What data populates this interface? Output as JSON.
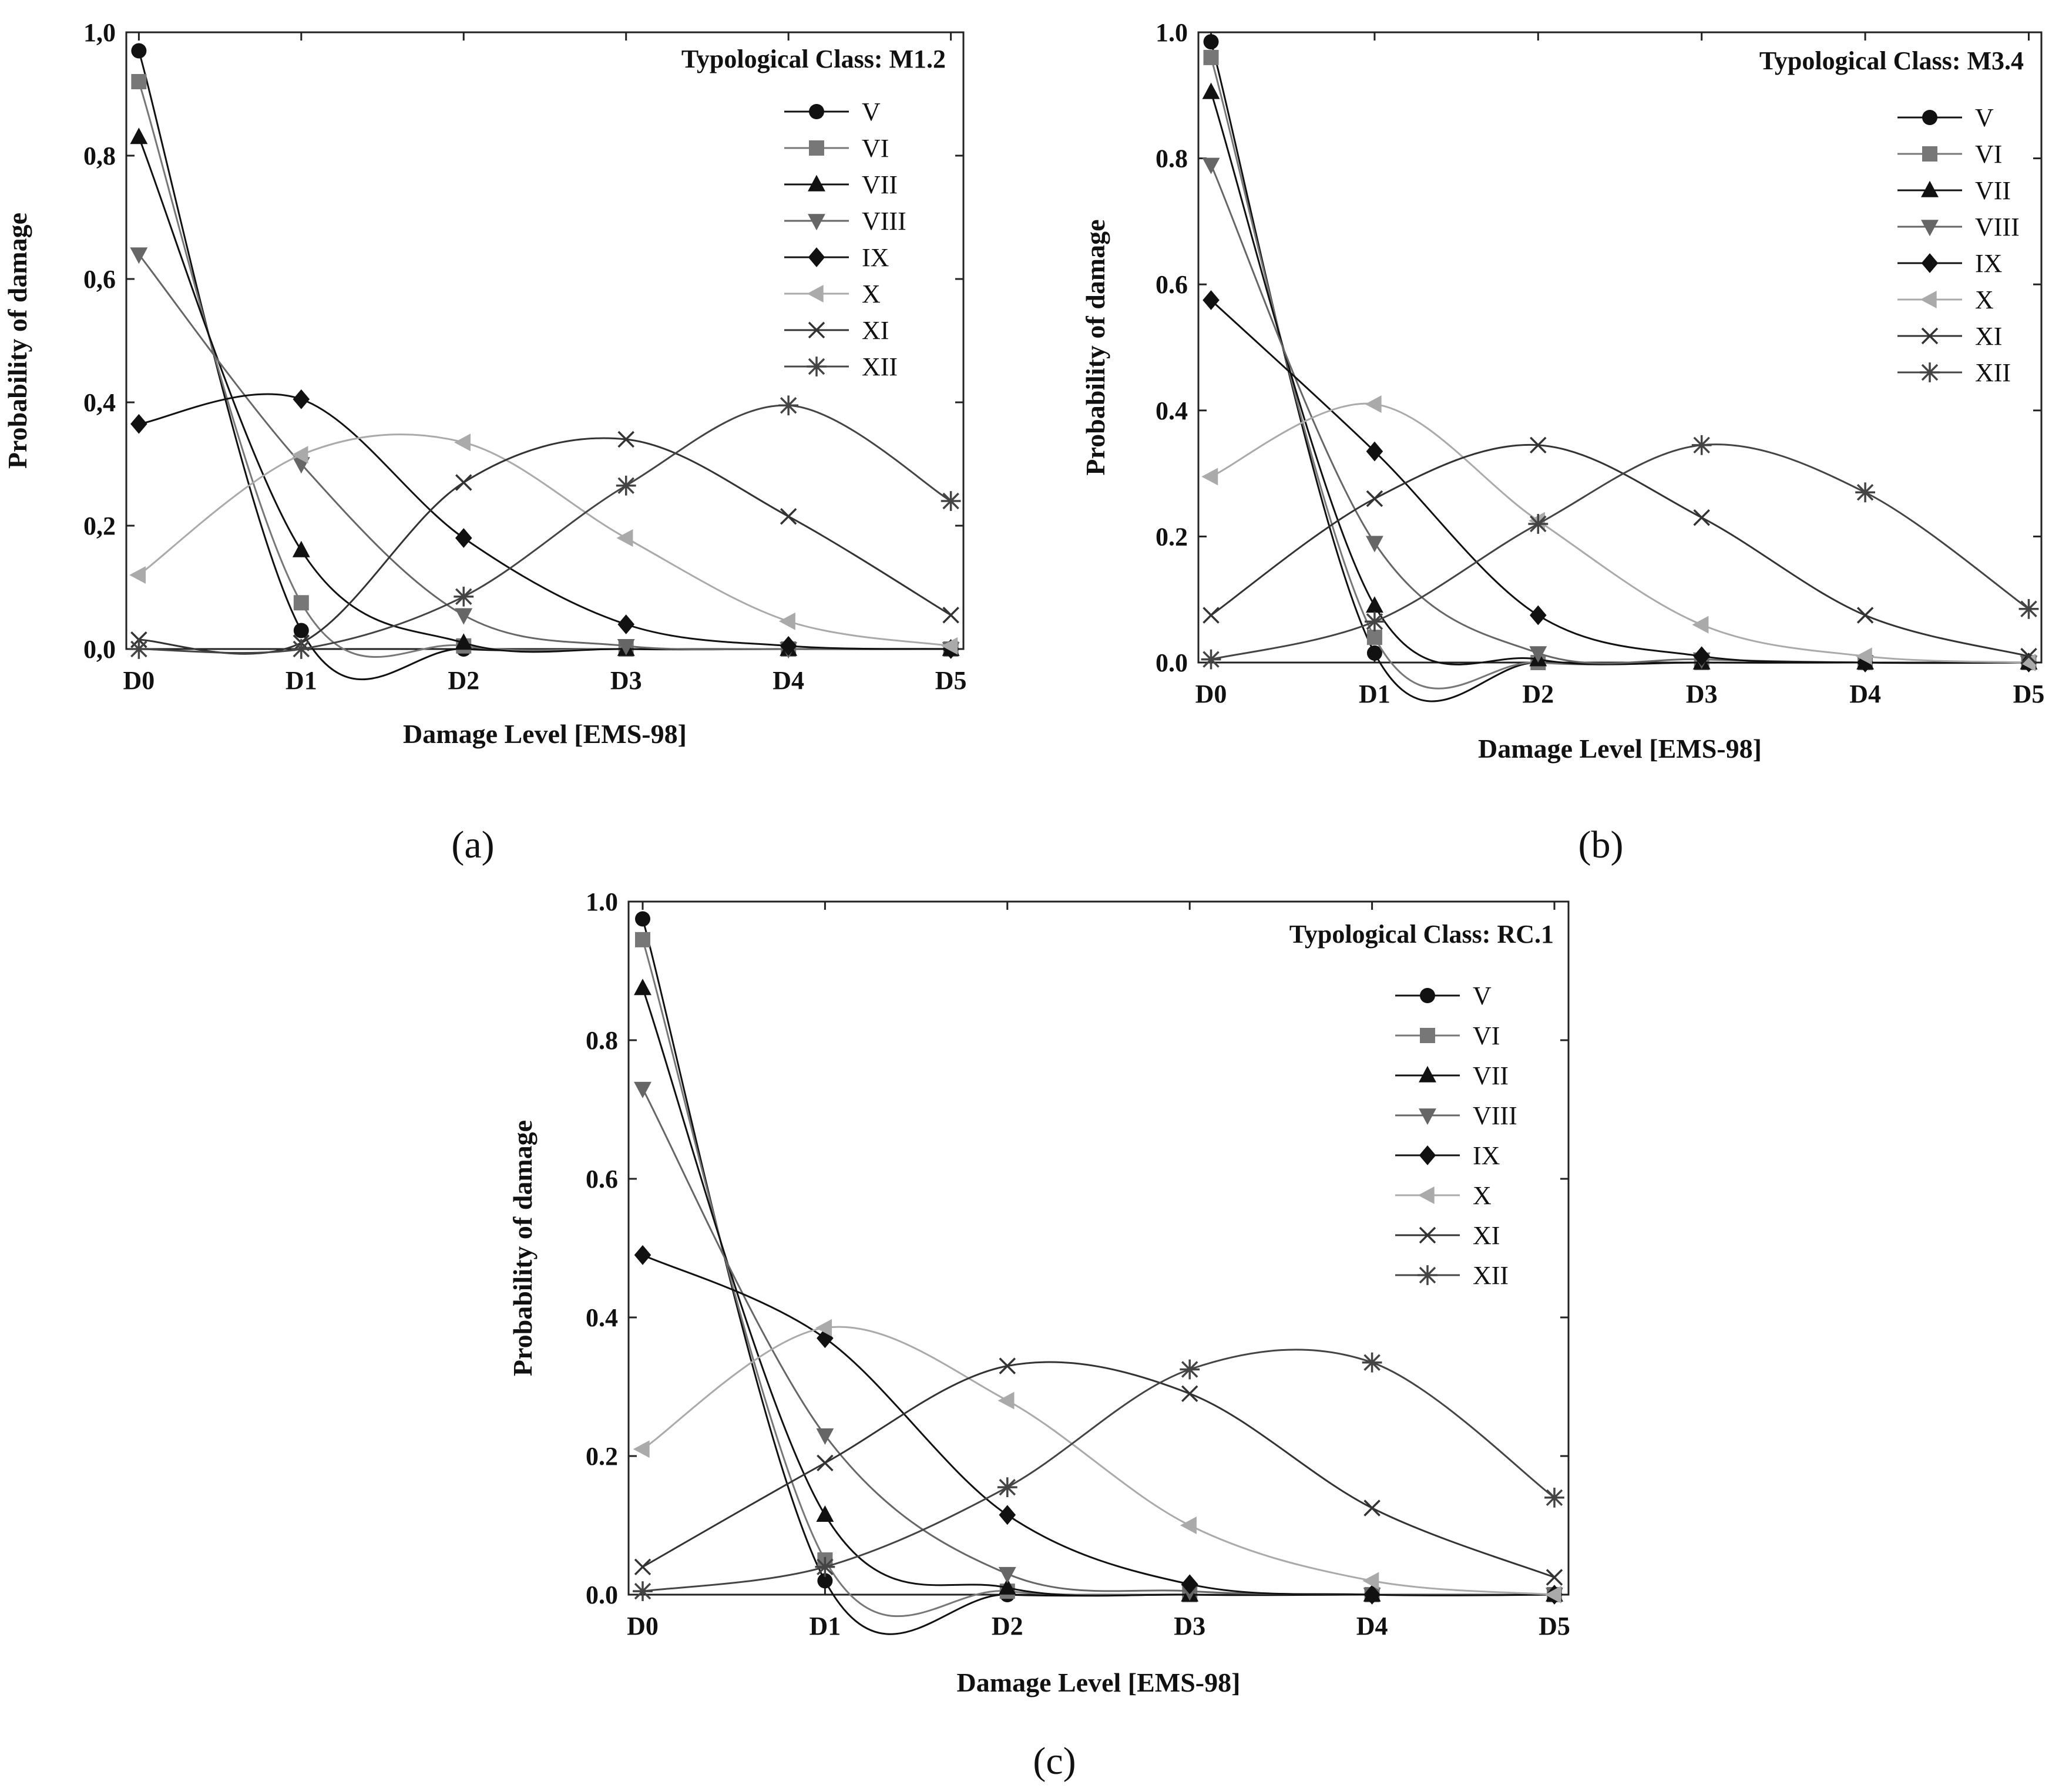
{
  "figure": {
    "captions": [
      "(a)",
      "(b)",
      "(c)"
    ]
  },
  "series_styles": [
    {
      "name": "V",
      "color": "#111111",
      "marker": "circle-filled"
    },
    {
      "name": "VI",
      "color": "#777777",
      "marker": "square-filled"
    },
    {
      "name": "VII",
      "color": "#111111",
      "marker": "triangle-up-filled"
    },
    {
      "name": "VIII",
      "color": "#666666",
      "marker": "triangle-down-filled"
    },
    {
      "name": "IX",
      "color": "#111111",
      "marker": "diamond-filled"
    },
    {
      "name": "X",
      "color": "#aaaaaa",
      "marker": "triangle-left-filled"
    },
    {
      "name": "XI",
      "color": "#333333",
      "marker": "x-cross"
    },
    {
      "name": "XII",
      "color": "#444444",
      "marker": "asterisk"
    }
  ],
  "chart_data": [
    {
      "type": "line",
      "panel": "(a)",
      "title": "Typological Class: M1.2",
      "xlabel": "Damage Level [EMS-98]",
      "ylabel": "Probability of damage",
      "categories": [
        "D0",
        "D1",
        "D2",
        "D3",
        "D4",
        "D5"
      ],
      "ylim": [
        0,
        1.0
      ],
      "yticks": [
        "0,0",
        "0,2",
        "0,4",
        "0,6",
        "0,8",
        "1,0"
      ],
      "grid": false,
      "legend_position": "top-right",
      "series": [
        {
          "name": "V",
          "values": [
            0.97,
            0.03,
            0.0,
            0.0,
            0.0,
            0.0
          ]
        },
        {
          "name": "VI",
          "values": [
            0.92,
            0.075,
            0.005,
            0.0,
            0.0,
            0.0
          ]
        },
        {
          "name": "VII",
          "values": [
            0.83,
            0.16,
            0.01,
            0.0,
            0.0,
            0.0
          ]
        },
        {
          "name": "VIII",
          "values": [
            0.64,
            0.3,
            0.055,
            0.005,
            0.0,
            0.0
          ]
        },
        {
          "name": "IX",
          "values": [
            0.365,
            0.405,
            0.18,
            0.04,
            0.005,
            0.0
          ]
        },
        {
          "name": "X",
          "values": [
            0.12,
            0.315,
            0.335,
            0.18,
            0.045,
            0.005
          ]
        },
        {
          "name": "XI",
          "values": [
            0.015,
            0.01,
            0.27,
            0.34,
            0.215,
            0.055
          ]
        },
        {
          "name": "XII",
          "values": [
            0.0,
            0.0,
            0.085,
            0.265,
            0.395,
            0.24
          ]
        }
      ]
    },
    {
      "type": "line",
      "panel": "(b)",
      "title": "Typological Class: M3.4",
      "xlabel": "Damage Level [EMS-98]",
      "ylabel": "Probability of damage",
      "categories": [
        "D0",
        "D1",
        "D2",
        "D3",
        "D4",
        "D5"
      ],
      "ylim": [
        0,
        1.0
      ],
      "yticks": [
        "0.0",
        "0.2",
        "0.4",
        "0.6",
        "0.8",
        "1.0"
      ],
      "grid": false,
      "legend_position": "top-right",
      "series": [
        {
          "name": "V",
          "values": [
            0.985,
            0.015,
            0.0,
            0.0,
            0.0,
            0.0
          ]
        },
        {
          "name": "VI",
          "values": [
            0.96,
            0.04,
            0.0,
            0.0,
            0.0,
            0.0
          ]
        },
        {
          "name": "VII",
          "values": [
            0.905,
            0.09,
            0.005,
            0.0,
            0.0,
            0.0
          ]
        },
        {
          "name": "VIII",
          "values": [
            0.79,
            0.19,
            0.015,
            0.005,
            0.0,
            0.0
          ]
        },
        {
          "name": "IX",
          "values": [
            0.575,
            0.335,
            0.075,
            0.01,
            0.0,
            0.0
          ]
        },
        {
          "name": "X",
          "values": [
            0.295,
            0.41,
            0.225,
            0.06,
            0.01,
            0.0
          ]
        },
        {
          "name": "XI",
          "values": [
            0.075,
            0.26,
            0.345,
            0.23,
            0.075,
            0.01
          ]
        },
        {
          "name": "XII",
          "values": [
            0.005,
            0.065,
            0.22,
            0.345,
            0.27,
            0.085
          ]
        }
      ]
    },
    {
      "type": "line",
      "panel": "(c)",
      "title": "Typological Class: RC.1",
      "xlabel": "Damage Level [EMS-98]",
      "ylabel": "Probability of damage",
      "categories": [
        "D0",
        "D1",
        "D2",
        "D3",
        "D4",
        "D5"
      ],
      "ylim": [
        0,
        1.0
      ],
      "yticks": [
        "0.0",
        "0.2",
        "0.4",
        "0.6",
        "0.8",
        "1.0"
      ],
      "grid": false,
      "legend_position": "top-right",
      "series": [
        {
          "name": "V",
          "values": [
            0.975,
            0.02,
            0.0,
            0.0,
            0.0,
            0.0
          ]
        },
        {
          "name": "VI",
          "values": [
            0.945,
            0.05,
            0.005,
            0.0,
            0.0,
            0.0
          ]
        },
        {
          "name": "VII",
          "values": [
            0.875,
            0.115,
            0.01,
            0.0,
            0.0,
            0.0
          ]
        },
        {
          "name": "VIII",
          "values": [
            0.73,
            0.23,
            0.03,
            0.005,
            0.0,
            0.0
          ]
        },
        {
          "name": "IX",
          "values": [
            0.49,
            0.37,
            0.115,
            0.015,
            0.0,
            0.0
          ]
        },
        {
          "name": "X",
          "values": [
            0.21,
            0.385,
            0.28,
            0.1,
            0.02,
            0.0
          ]
        },
        {
          "name": "XI",
          "values": [
            0.04,
            0.19,
            0.33,
            0.29,
            0.125,
            0.025
          ]
        },
        {
          "name": "XII",
          "values": [
            0.005,
            0.04,
            0.155,
            0.325,
            0.335,
            0.14
          ]
        }
      ]
    }
  ]
}
